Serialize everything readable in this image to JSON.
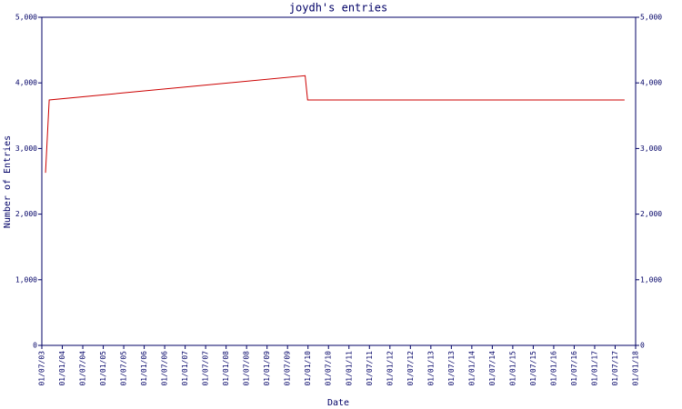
{
  "chart_data": {
    "type": "line",
    "title": "joydh's entries",
    "x_label": "Date",
    "y_label": "Number of Entries",
    "series": [
      {
        "name": "entries",
        "color": "#cc0000",
        "x": [
          2003.59,
          2003.68,
          2009.93,
          2009.99,
          2017.73
        ],
        "values": [
          2630,
          3740,
          4110,
          3740,
          3740
        ]
      }
    ],
    "xlim": [
      2003.5,
      2018.0
    ],
    "xticks": [
      {
        "value": 2003.5,
        "label": "01/07/03"
      },
      {
        "value": 2004.0,
        "label": "01/01/04"
      },
      {
        "value": 2004.5,
        "label": "01/07/04"
      },
      {
        "value": 2005.0,
        "label": "01/01/05"
      },
      {
        "value": 2005.5,
        "label": "01/07/05"
      },
      {
        "value": 2006.0,
        "label": "01/01/06"
      },
      {
        "value": 2006.5,
        "label": "01/07/06"
      },
      {
        "value": 2007.0,
        "label": "01/01/07"
      },
      {
        "value": 2007.5,
        "label": "01/07/07"
      },
      {
        "value": 2008.0,
        "label": "01/01/08"
      },
      {
        "value": 2008.5,
        "label": "01/07/08"
      },
      {
        "value": 2009.0,
        "label": "01/01/09"
      },
      {
        "value": 2009.5,
        "label": "01/07/09"
      },
      {
        "value": 2010.0,
        "label": "01/01/10"
      },
      {
        "value": 2010.5,
        "label": "01/07/10"
      },
      {
        "value": 2011.0,
        "label": "01/01/11"
      },
      {
        "value": 2011.5,
        "label": "01/07/11"
      },
      {
        "value": 2012.0,
        "label": "01/01/12"
      },
      {
        "value": 2012.5,
        "label": "01/07/12"
      },
      {
        "value": 2013.0,
        "label": "01/01/13"
      },
      {
        "value": 2013.5,
        "label": "01/07/13"
      },
      {
        "value": 2014.0,
        "label": "01/01/14"
      },
      {
        "value": 2014.5,
        "label": "01/07/14"
      },
      {
        "value": 2015.0,
        "label": "01/01/15"
      },
      {
        "value": 2015.5,
        "label": "01/07/15"
      },
      {
        "value": 2016.0,
        "label": "01/01/16"
      },
      {
        "value": 2016.5,
        "label": "01/07/16"
      },
      {
        "value": 2017.0,
        "label": "01/01/17"
      },
      {
        "value": 2017.5,
        "label": "01/07/17"
      },
      {
        "value": 2018.0,
        "label": "01/01/18"
      }
    ],
    "ylim": [
      0,
      5000
    ],
    "yticks": [
      0,
      {
        "value": 1000,
        "label": "1,000"
      },
      {
        "value": 2000,
        "label": "2,000"
      },
      {
        "value": 3000,
        "label": "3,000"
      },
      {
        "value": 4000,
        "label": "4,000"
      },
      {
        "value": 5000,
        "label": "5,000"
      }
    ],
    "right_axis": true
  }
}
